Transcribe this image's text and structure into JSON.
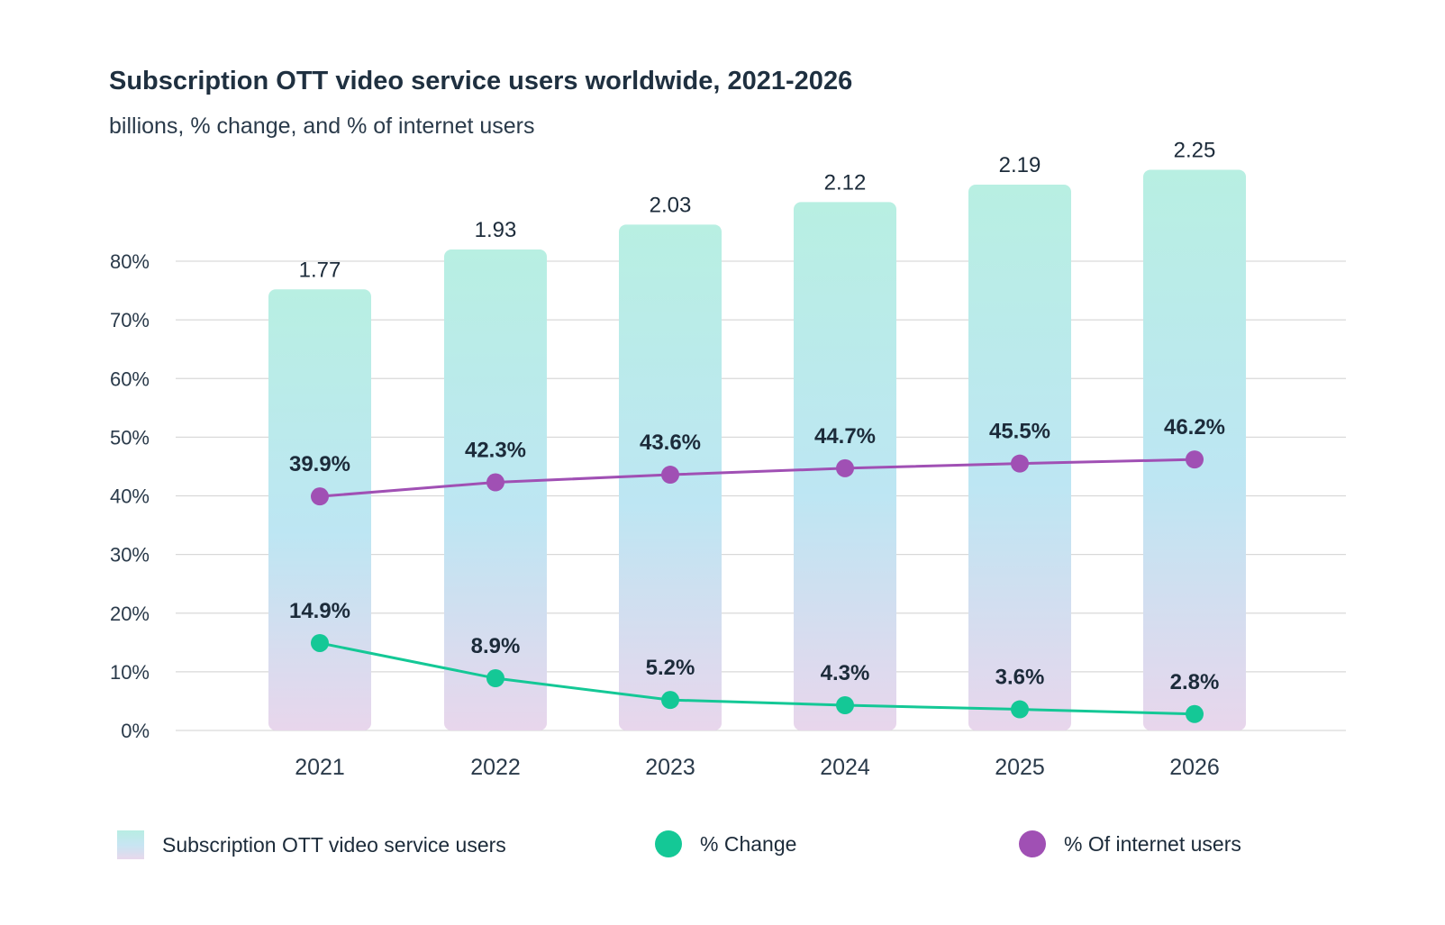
{
  "title": "Subscription OTT video service users worldwide, 2021-2026",
  "subtitle": "billions, % change, and % of internet users",
  "colors": {
    "bar_top": "#b8efe2",
    "bar_mid": "#bde6f3",
    "bar_bottom": "#e8d6ec",
    "change": "#14c896",
    "internet": "#a050b4",
    "grid": "#d9d9d9",
    "text": "#1c2b3a"
  },
  "legend": {
    "bars": "Subscription OTT video service users",
    "change": "% Change",
    "internet": "% Of internet users"
  },
  "chart_data": {
    "type": "bar",
    "categories": [
      "2021",
      "2022",
      "2023",
      "2024",
      "2025",
      "2026"
    ],
    "y_ticks": [
      "0%",
      "10%",
      "20%",
      "30%",
      "40%",
      "50%",
      "60%",
      "70%",
      "80%"
    ],
    "ylim": [
      0,
      80
    ],
    "grid": true,
    "legend_position": "bottom",
    "series": [
      {
        "name": "Subscription OTT video service users",
        "kind": "bar",
        "values": [
          1.77,
          1.93,
          2.03,
          2.12,
          2.19,
          2.25
        ],
        "labels": [
          "1.77",
          "1.93",
          "2.03",
          "2.12",
          "2.19",
          "2.25"
        ]
      },
      {
        "name": "% Change",
        "kind": "line",
        "values": [
          14.9,
          8.9,
          5.2,
          4.3,
          3.6,
          2.8
        ],
        "labels": [
          "14.9%",
          "8.9%",
          "5.2%",
          "4.3%",
          "3.6%",
          "2.8%"
        ]
      },
      {
        "name": "% Of internet users",
        "kind": "line",
        "values": [
          39.9,
          42.3,
          43.6,
          44.7,
          45.5,
          46.2
        ],
        "labels": [
          "39.9%",
          "42.3%",
          "43.6%",
          "44.7%",
          "45.5%",
          "46.2%"
        ]
      }
    ]
  }
}
